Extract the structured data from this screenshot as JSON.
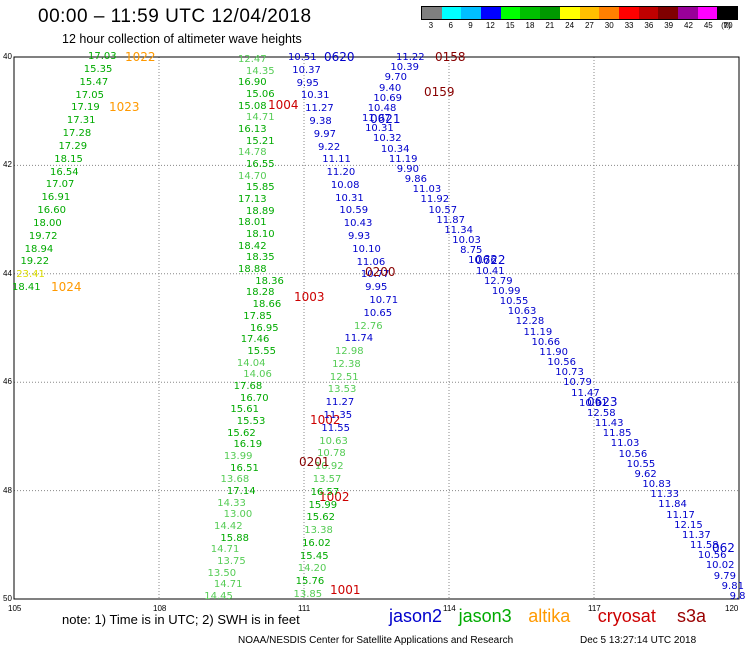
{
  "title": "00:00 – 11:59 UTC 12/04/2018",
  "subtitle": "12 hour collection of altimeter wave heights",
  "legend": {
    "labels": [
      "3",
      "6",
      "9",
      "12",
      "15",
      "18",
      "21",
      "24",
      "27",
      "30",
      "33",
      "36",
      "39",
      "42",
      "45",
      "70",
      "(ft)"
    ],
    "colors": [
      "#7f7f7f",
      "#00ffff",
      "#00bfff",
      "#0000ff",
      "#00ff00",
      "#00bf00",
      "#009900",
      "#ffff00",
      "#ffbf00",
      "#ff8000",
      "#ff0000",
      "#bf0000",
      "#800000",
      "#990099",
      "#ff00ff",
      "#000000"
    ]
  },
  "axes": {
    "x_ticks": [
      "105",
      "108",
      "111",
      "114",
      "117",
      "120"
    ],
    "y_ticks": [
      "40",
      "42",
      "44",
      "46",
      "48",
      "50"
    ]
  },
  "note": "note:  1) Time is in UTC;  2) SWH is in feet",
  "satellites": [
    {
      "name": "jason2",
      "color": "#0000cc"
    },
    {
      "name": "jason3",
      "color": "#00aa00"
    },
    {
      "name": "altika",
      "color": "#ff9900"
    },
    {
      "name": "cryosat",
      "color": "#cc0000"
    },
    {
      "name": "s3a",
      "color": "#990000"
    }
  ],
  "credit": "NOAA/NESDIS Center for Satellite Applications and Research",
  "timestamp": "Dec  5 13:27:14 UTC 2018",
  "map_data": {
    "colors": {
      "g": "#00aa00",
      "lg": "#55cc55",
      "b": "#0000cc",
      "c": "#33cccc",
      "y": "#dddd00",
      "o": "#ff9900",
      "r": "#cc0000",
      "m": "#880000"
    },
    "track_altika": {
      "color": "o",
      "values": [
        "17.03",
        "15.35",
        "15.47",
        "17.05",
        "17.19",
        "17.31",
        "17.28",
        "17.29",
        "18.15",
        "16.54",
        "17.07",
        "16.91",
        "16.60",
        "18.00",
        "19.72",
        "18.94",
        "19.22",
        "23.41",
        "18.41"
      ],
      "value_colors": [
        "g",
        "g",
        "g",
        "g",
        "g",
        "g",
        "g",
        "g",
        "g",
        "g",
        "g",
        "g",
        "g",
        "g",
        "g",
        "g",
        "g",
        "y",
        "g"
      ],
      "times": [
        "1022",
        "1023",
        "1024"
      ]
    },
    "track_jason3": {
      "values": [
        "12.47",
        "14.35",
        "16.90",
        "15.06",
        "15.08",
        "14.71",
        "16.13",
        "15.21",
        "14.78",
        "16.55",
        "14.70",
        "15.85",
        "17.13",
        "18.89",
        "18.01",
        "18.10",
        "18.42",
        "18.35",
        "18.88",
        "18.36",
        "18.28",
        "18.66",
        "17.85",
        "16.95",
        "17.46",
        "15.55",
        "14.04",
        "14.06",
        "17.68",
        "16.70",
        "15.61",
        "15.53",
        "15.62",
        "16.19",
        "13.99",
        "16.51",
        "13.68",
        "17.14",
        "14.33",
        "13.00",
        "14.42",
        "15.88",
        "14.71",
        "13.75",
        "13.50",
        "14.71",
        "14.45"
      ],
      "value_colors": [
        "lg",
        "lg",
        "g",
        "g",
        "g",
        "lg",
        "g",
        "g",
        "lg",
        "g",
        "lg",
        "g",
        "g",
        "g",
        "g",
        "g",
        "g",
        "g",
        "g",
        "g",
        "g",
        "g",
        "g",
        "g",
        "g",
        "g",
        "lg",
        "lg",
        "g",
        "g",
        "g",
        "g",
        "g",
        "g",
        "lg",
        "g",
        "lg",
        "g",
        "lg",
        "lg",
        "lg",
        "g",
        "lg",
        "lg",
        "lg",
        "lg",
        "lg"
      ],
      "times": [
        "1004",
        "1003",
        "1002",
        "1002",
        "1001"
      ]
    },
    "track_cryosat": {
      "values": [
        "10.51",
        "10.37",
        "9.95",
        "10.31",
        "11.27",
        "9.38",
        "9.97",
        "9.22",
        "11.11",
        "11.20",
        "10.08",
        "10.31",
        "10.59",
        "10.43",
        "9.93",
        "10.10",
        "11.06",
        "10.77",
        "9.95",
        "10.71",
        "10.65",
        "12.76",
        "11.74",
        "12.98",
        "12.38",
        "12.51",
        "13.53",
        "11.27",
        "11.35",
        "11.55",
        "10.63",
        "10.78",
        "10.92",
        "13.57",
        "16.57",
        "15.99",
        "15.62",
        "13.38",
        "16.02",
        "15.45",
        "14.20",
        "15.76",
        "13.85"
      ],
      "value_colors": [
        "b",
        "b",
        "b",
        "b",
        "b",
        "b",
        "b",
        "b",
        "b",
        "b",
        "b",
        "b",
        "b",
        "b",
        "b",
        "b",
        "b",
        "b",
        "b",
        "b",
        "b",
        "lg",
        "b",
        "lg",
        "lg",
        "lg",
        "lg",
        "b",
        "b",
        "b",
        "lg",
        "lg",
        "lg",
        "lg",
        "g",
        "g",
        "g",
        "lg",
        "g",
        "g",
        "lg",
        "g",
        "lg"
      ],
      "times": [
        "0620",
        "0621",
        "0200",
        "0201"
      ]
    },
    "track_jason2": {
      "values": [
        "11.22",
        "10.39",
        "9.70",
        "9.40",
        "10.69",
        "10.48",
        "11.07",
        "10.31",
        "10.32",
        "10.34",
        "11.19",
        "9.90",
        "9.86",
        "11.03",
        "11.92",
        "10.57",
        "11.87",
        "11.34",
        "10.03",
        "8.75",
        "10.76",
        "10.41",
        "12.79",
        "10.99",
        "10.55",
        "10.63",
        "12.28",
        "11.19",
        "10.66",
        "11.90",
        "10.56",
        "10.73",
        "10.79",
        "11.47",
        "10.91",
        "12.58",
        "11.43",
        "11.85",
        "11.03",
        "10.56",
        "10.55",
        "9.62",
        "10.83",
        "11.33",
        "11.84",
        "11.17",
        "12.15",
        "11.37",
        "11.58",
        "10.56",
        "10.02",
        "9.79",
        "9.81",
        "9.8"
      ],
      "times": [
        "0158",
        "0159",
        "0622",
        "0623",
        "062"
      ]
    }
  }
}
